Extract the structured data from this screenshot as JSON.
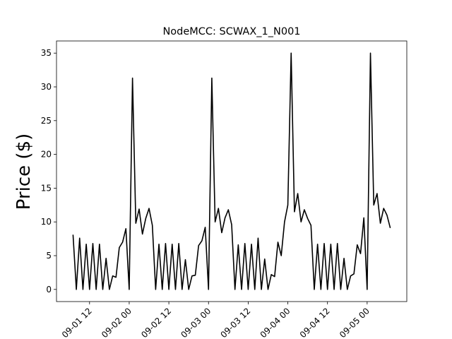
{
  "chart_data": {
    "type": "line",
    "title": "NodeMCC: SCWAX_1_N001",
    "y_label": "Price ($)",
    "x": [
      "09-01 07",
      "09-01 08",
      "09-01 09",
      "09-01 10",
      "09-01 11",
      "09-01 12",
      "09-01 13",
      "09-01 14",
      "09-01 15",
      "09-01 16",
      "09-01 17",
      "09-01 18",
      "09-01 19",
      "09-01 20",
      "09-01 21",
      "09-01 22",
      "09-01 23",
      "09-02 00",
      "09-02 01",
      "09-02 02",
      "09-02 03",
      "09-02 04",
      "09-02 05",
      "09-02 06",
      "09-02 07",
      "09-02 08",
      "09-02 09",
      "09-02 10",
      "09-02 11",
      "09-02 12",
      "09-02 13",
      "09-02 14",
      "09-02 15",
      "09-02 16",
      "09-02 17",
      "09-02 18",
      "09-02 19",
      "09-02 20",
      "09-02 21",
      "09-02 22",
      "09-02 23",
      "09-03 00",
      "09-03 01",
      "09-03 02",
      "09-03 03",
      "09-03 04",
      "09-03 05",
      "09-03 06",
      "09-03 07",
      "09-03 08",
      "09-03 09",
      "09-03 10",
      "09-03 11",
      "09-03 12",
      "09-03 13",
      "09-03 14",
      "09-03 15",
      "09-03 16",
      "09-03 17",
      "09-03 18",
      "09-03 19",
      "09-03 20",
      "09-03 21",
      "09-03 22",
      "09-03 23",
      "09-04 00",
      "09-04 01",
      "09-04 02",
      "09-04 03",
      "09-04 04",
      "09-04 05",
      "09-04 06",
      "09-04 07",
      "09-04 08",
      "09-04 09",
      "09-04 10",
      "09-04 11",
      "09-04 12",
      "09-04 13",
      "09-04 14",
      "09-04 15",
      "09-04 16",
      "09-04 17",
      "09-04 18",
      "09-04 19",
      "09-04 20",
      "09-04 21",
      "09-04 22",
      "09-04 23",
      "09-05 00",
      "09-05 01",
      "09-05 02",
      "09-05 03",
      "09-05 04",
      "09-05 05",
      "09-05 06",
      "09-05 07"
    ],
    "values": [
      8.1,
      0,
      7.6,
      0,
      6.7,
      0,
      6.8,
      0,
      6.7,
      0,
      4.6,
      0,
      2.0,
      1.8,
      6.2,
      7.0,
      9.0,
      0,
      31.3,
      9.8,
      11.9,
      8.2,
      10.5,
      12.0,
      9.5,
      0,
      6.7,
      0,
      6.8,
      0,
      6.7,
      0,
      6.8,
      0,
      4.4,
      0,
      2.0,
      2.1,
      6.5,
      7.2,
      9.2,
      0,
      31.3,
      10.0,
      12.0,
      8.4,
      10.6,
      11.8,
      9.6,
      0,
      6.6,
      0,
      6.8,
      0,
      6.7,
      0,
      7.6,
      0,
      4.5,
      0,
      2.2,
      1.9,
      7.0,
      5.0,
      10.0,
      12.5,
      35.0,
      11.5,
      14.2,
      10.0,
      11.8,
      10.5,
      9.5,
      0,
      6.7,
      0,
      6.8,
      0,
      6.7,
      0,
      6.8,
      0,
      4.6,
      0,
      2.0,
      2.3,
      6.6,
      5.3,
      10.6,
      0,
      35.0,
      12.5,
      14.2,
      9.8,
      12.0,
      11.0,
      9.1
    ],
    "color": "#000000",
    "xlim": [
      "09-01 02",
      "09-05 12"
    ],
    "xticks": [
      "09-01 12",
      "09-02 00",
      "09-02 12",
      "09-03 00",
      "09-03 12",
      "09-04 00",
      "09-04 12",
      "09-05 00"
    ],
    "ylim": [
      -1.8,
      36.8
    ],
    "yticks": [
      0,
      5,
      10,
      15,
      20,
      25,
      30,
      35
    ]
  }
}
